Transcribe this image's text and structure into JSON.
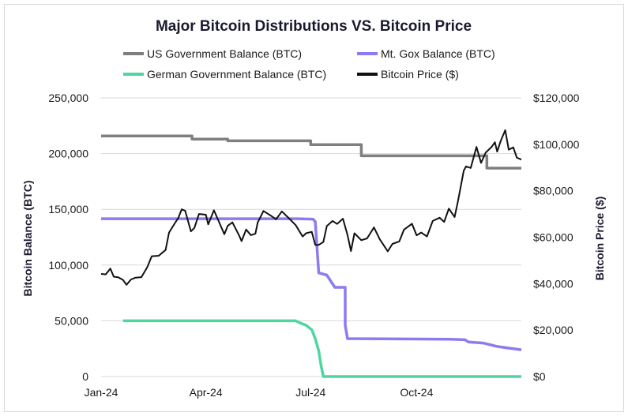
{
  "chart_data": {
    "type": "line",
    "title": "Major Bitcoin Distributions VS. Bitcoin Price",
    "ylabel_left": "Bitcoin Balance (BTC)",
    "ylabel_right": "Bitcoin Price ($)",
    "xlabel": "",
    "x_ticks": [
      "Jan-24",
      "Apr-24",
      "Jul-24",
      "Oct-24"
    ],
    "x_range": [
      "2024-01-01",
      "2024-12-31"
    ],
    "ylim_left": [
      0,
      250000
    ],
    "ylim_right": [
      0,
      120000
    ],
    "y_ticks_left": [
      "0",
      "50,000",
      "100,000",
      "150,000",
      "200,000",
      "250,000"
    ],
    "y_ticks_right": [
      "$0",
      "$20,000",
      "$40,000",
      "$60,000",
      "$80,000",
      "$100,000",
      "$120,000"
    ],
    "grid": true,
    "legend_position": "top",
    "series": [
      {
        "name": "US Government Balance (BTC)",
        "axis": "left",
        "color": "#7f7f7f",
        "points": [
          [
            "2024-01-01",
            215800
          ],
          [
            "2024-03-20",
            215800
          ],
          [
            "2024-03-20",
            213000
          ],
          [
            "2024-04-20",
            213000
          ],
          [
            "2024-04-20",
            211500
          ],
          [
            "2024-07-01",
            211500
          ],
          [
            "2024-07-01",
            208000
          ],
          [
            "2024-08-14",
            208000
          ],
          [
            "2024-08-14",
            198000
          ],
          [
            "2024-12-01",
            198000
          ],
          [
            "2024-12-01",
            187000
          ],
          [
            "2024-12-31",
            187000
          ]
        ]
      },
      {
        "name": "Mt. Gox Balance (BTC)",
        "axis": "left",
        "color": "#8b7cf0",
        "points": [
          [
            "2024-01-01",
            141600
          ],
          [
            "2024-06-20",
            141600
          ],
          [
            "2024-07-03",
            141200
          ],
          [
            "2024-07-05",
            139000
          ],
          [
            "2024-07-08",
            93000
          ],
          [
            "2024-07-15",
            91000
          ],
          [
            "2024-07-22",
            80000
          ],
          [
            "2024-07-31",
            80000
          ],
          [
            "2024-07-31",
            46000
          ],
          [
            "2024-08-02",
            34000
          ],
          [
            "2024-10-30",
            33500
          ],
          [
            "2024-11-12",
            33000
          ],
          [
            "2024-11-15",
            31000
          ],
          [
            "2024-11-28",
            30000
          ],
          [
            "2024-12-10",
            27000
          ],
          [
            "2024-12-20",
            25500
          ],
          [
            "2024-12-31",
            24000
          ]
        ]
      },
      {
        "name": "German Government Balance (BTC)",
        "axis": "left",
        "color": "#4fd6a0",
        "points": [
          [
            "2024-01-20",
            50000
          ],
          [
            "2024-06-18",
            50000
          ],
          [
            "2024-06-22",
            48000
          ],
          [
            "2024-06-27",
            46000
          ],
          [
            "2024-07-02",
            42000
          ],
          [
            "2024-07-05",
            34000
          ],
          [
            "2024-07-08",
            23000
          ],
          [
            "2024-07-10",
            10000
          ],
          [
            "2024-07-12",
            0
          ],
          [
            "2024-12-31",
            0
          ]
        ]
      },
      {
        "name": "Bitcoin Price ($)",
        "axis": "right",
        "color": "#111111",
        "points": [
          [
            "2024-01-01",
            44200
          ],
          [
            "2024-01-05",
            44000
          ],
          [
            "2024-01-09",
            46500
          ],
          [
            "2024-01-12",
            43000
          ],
          [
            "2024-01-16",
            42700
          ],
          [
            "2024-01-20",
            41600
          ],
          [
            "2024-01-23",
            39500
          ],
          [
            "2024-01-27",
            41800
          ],
          [
            "2024-01-31",
            42600
          ],
          [
            "2024-02-05",
            42800
          ],
          [
            "2024-02-10",
            47000
          ],
          [
            "2024-02-14",
            51800
          ],
          [
            "2024-02-20",
            52000
          ],
          [
            "2024-02-26",
            54500
          ],
          [
            "2024-02-29",
            62000
          ],
          [
            "2024-03-05",
            66000
          ],
          [
            "2024-03-08",
            68300
          ],
          [
            "2024-03-11",
            72000
          ],
          [
            "2024-03-14",
            71400
          ],
          [
            "2024-03-19",
            62500
          ],
          [
            "2024-03-22",
            64000
          ],
          [
            "2024-03-26",
            70000
          ],
          [
            "2024-04-01",
            69700
          ],
          [
            "2024-04-03",
            65500
          ],
          [
            "2024-04-08",
            71600
          ],
          [
            "2024-04-12",
            67000
          ],
          [
            "2024-04-17",
            61300
          ],
          [
            "2024-04-20",
            64900
          ],
          [
            "2024-04-24",
            66400
          ],
          [
            "2024-04-30",
            60600
          ],
          [
            "2024-05-02",
            58300
          ],
          [
            "2024-05-06",
            63300
          ],
          [
            "2024-05-10",
            60900
          ],
          [
            "2024-05-14",
            61500
          ],
          [
            "2024-05-16",
            66300
          ],
          [
            "2024-05-21",
            71300
          ],
          [
            "2024-05-27",
            69400
          ],
          [
            "2024-06-01",
            67700
          ],
          [
            "2024-06-06",
            71100
          ],
          [
            "2024-06-12",
            68200
          ],
          [
            "2024-06-18",
            65200
          ],
          [
            "2024-06-24",
            60300
          ],
          [
            "2024-06-27",
            61700
          ],
          [
            "2024-07-02",
            62300
          ],
          [
            "2024-07-05",
            56700
          ],
          [
            "2024-07-08",
            56700
          ],
          [
            "2024-07-12",
            57900
          ],
          [
            "2024-07-15",
            64800
          ],
          [
            "2024-07-20",
            67000
          ],
          [
            "2024-07-24",
            65700
          ],
          [
            "2024-07-29",
            68000
          ],
          [
            "2024-08-02",
            61000
          ],
          [
            "2024-08-05",
            54000
          ],
          [
            "2024-08-08",
            61700
          ],
          [
            "2024-08-14",
            58700
          ],
          [
            "2024-08-19",
            59500
          ],
          [
            "2024-08-25",
            64200
          ],
          [
            "2024-08-30",
            59100
          ],
          [
            "2024-09-06",
            53900
          ],
          [
            "2024-09-10",
            57100
          ],
          [
            "2024-09-16",
            58200
          ],
          [
            "2024-09-20",
            63200
          ],
          [
            "2024-09-27",
            65800
          ],
          [
            "2024-10-01",
            60800
          ],
          [
            "2024-10-05",
            62000
          ],
          [
            "2024-10-10",
            60300
          ],
          [
            "2024-10-15",
            67000
          ],
          [
            "2024-10-21",
            68400
          ],
          [
            "2024-10-25",
            66600
          ],
          [
            "2024-10-29",
            72300
          ],
          [
            "2024-11-03",
            68700
          ],
          [
            "2024-11-06",
            75600
          ],
          [
            "2024-11-11",
            88700
          ],
          [
            "2024-11-13",
            90500
          ],
          [
            "2024-11-17",
            89800
          ],
          [
            "2024-11-22",
            98900
          ],
          [
            "2024-11-26",
            92000
          ],
          [
            "2024-11-30",
            96400
          ],
          [
            "2024-12-05",
            98800
          ],
          [
            "2024-12-08",
            100900
          ],
          [
            "2024-12-10",
            96900
          ],
          [
            "2024-12-13",
            101400
          ],
          [
            "2024-12-17",
            106100
          ],
          [
            "2024-12-20",
            97700
          ],
          [
            "2024-12-24",
            98700
          ],
          [
            "2024-12-27",
            94300
          ],
          [
            "2024-12-31",
            93400
          ]
        ]
      }
    ]
  }
}
